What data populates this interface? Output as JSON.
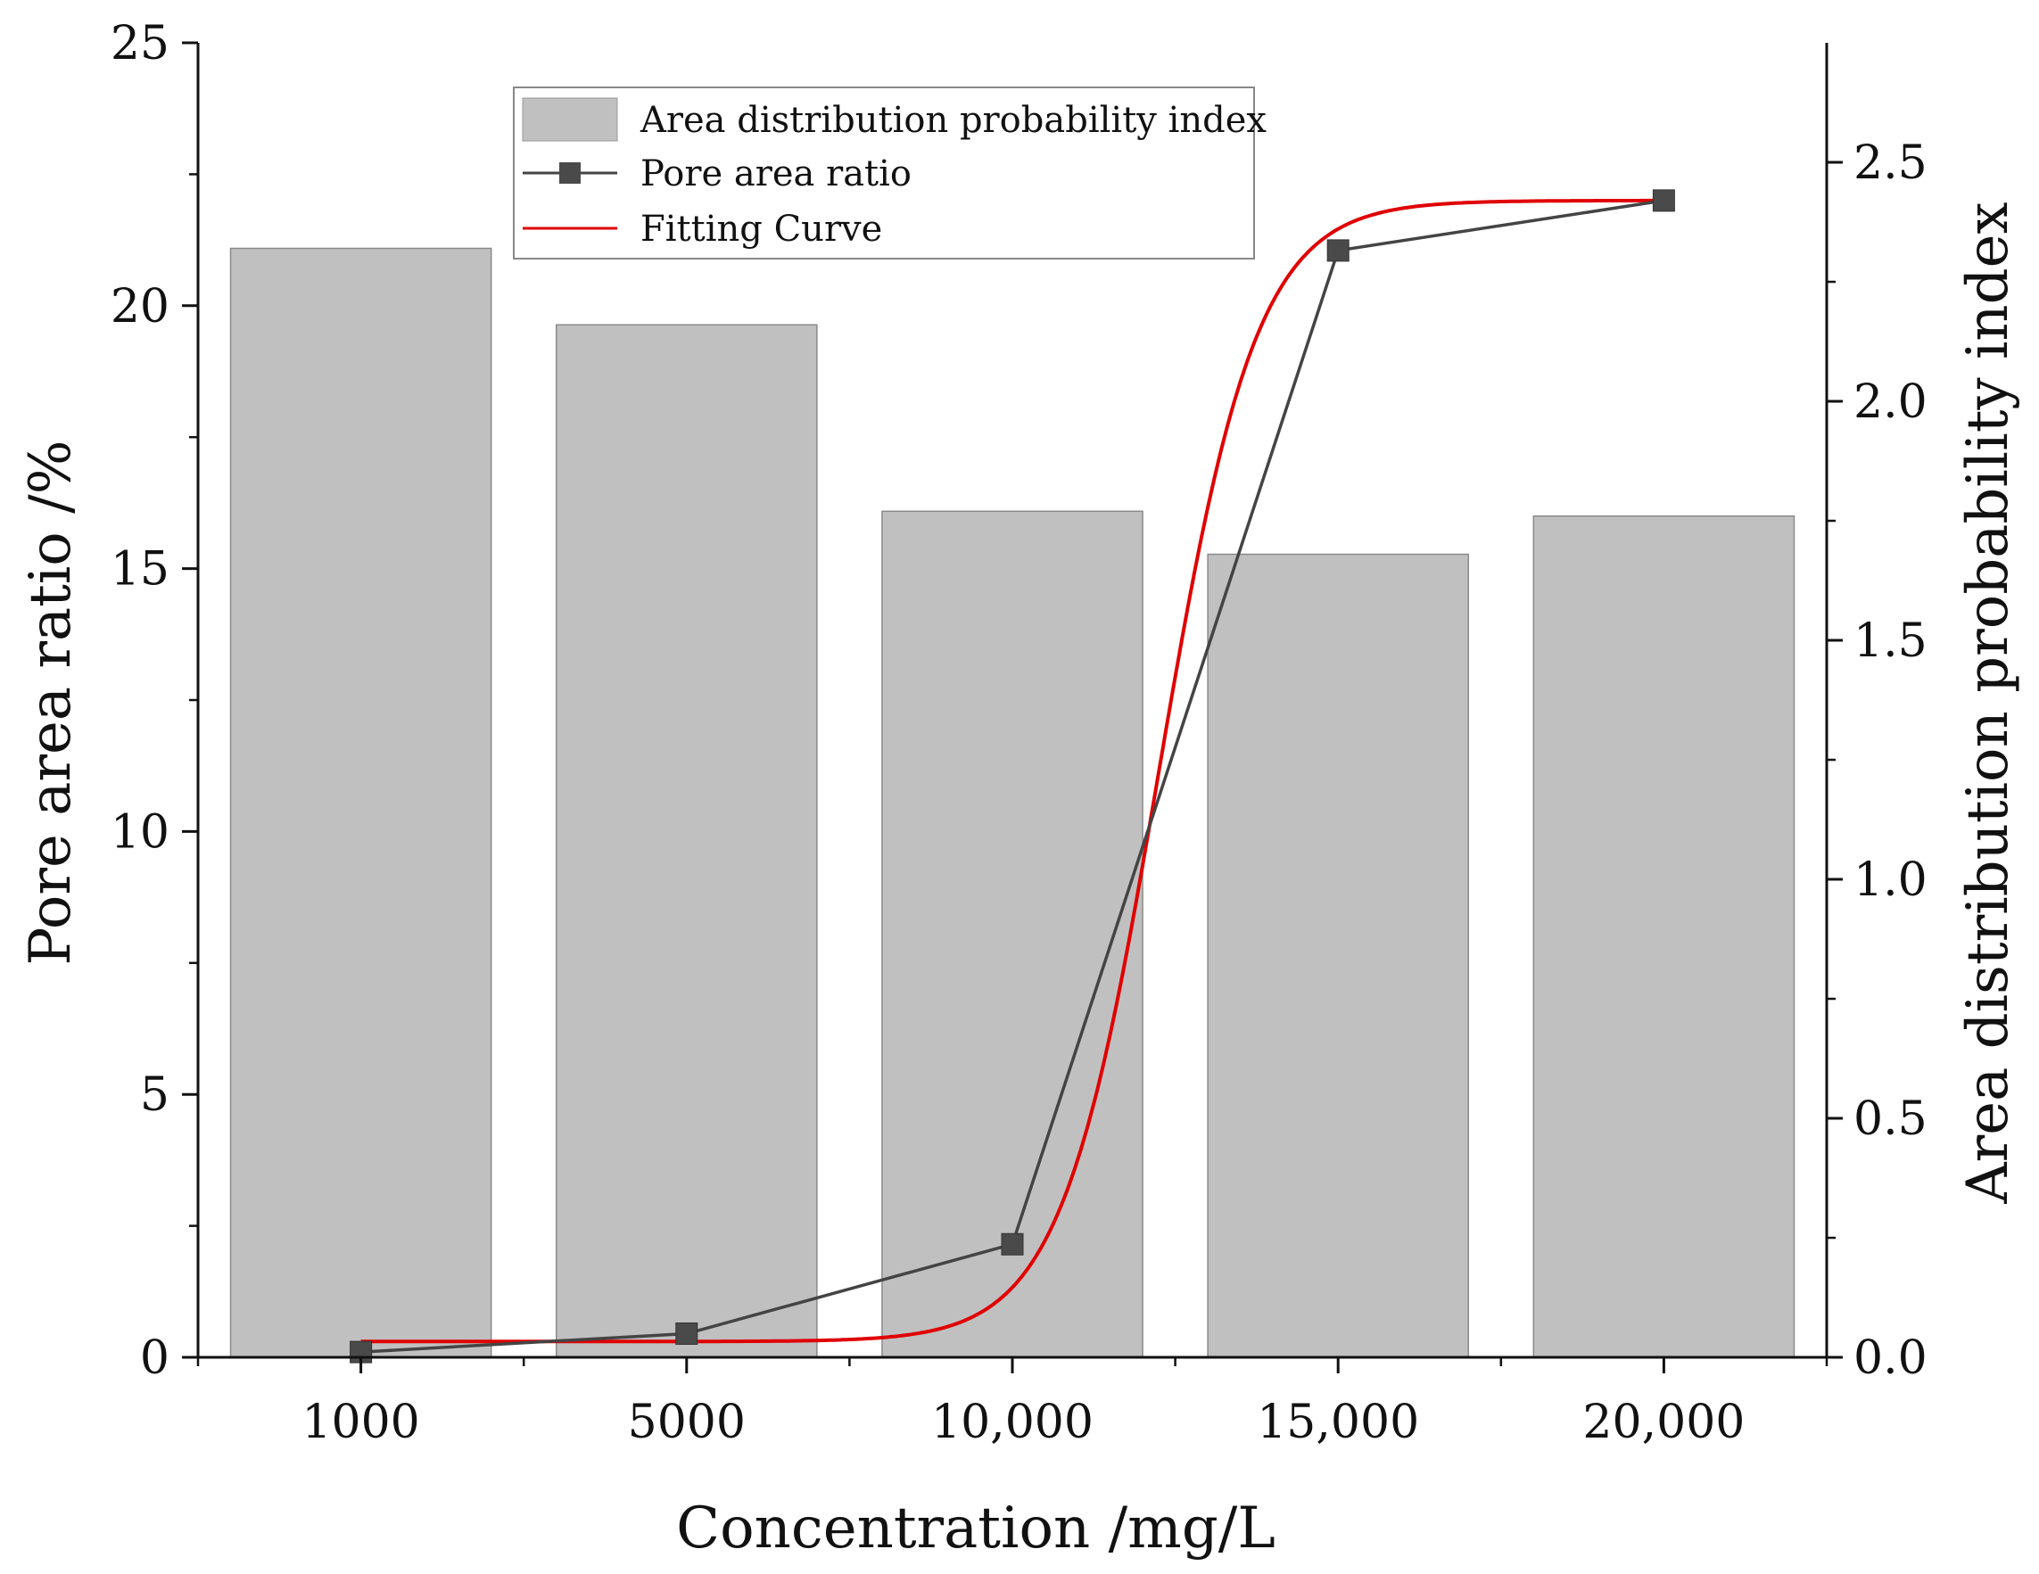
{
  "chart_data": {
    "type": "bar",
    "title": "",
    "categories": [
      "1000",
      "5000",
      "10,000",
      "15,000",
      "20,000"
    ],
    "xlabel": "Concentration /mg/L",
    "ylabel": "Pore area ratio /%",
    "y2label": "Area distribution probability index",
    "ylim": [
      0,
      25
    ],
    "y2lim": [
      0,
      2.75
    ],
    "yticks": [
      "0",
      "5",
      "10",
      "15",
      "20",
      "25"
    ],
    "y2ticks": [
      "0.0",
      "0.5",
      "1.0",
      "1.5",
      "2.0",
      "2.5"
    ],
    "series": [
      {
        "name": "Area distribution probability index",
        "type": "bar",
        "axis": "right",
        "values": [
          2.32,
          2.16,
          1.77,
          1.68,
          1.76
        ],
        "color": "#c0c0c0"
      },
      {
        "name": "Pore area ratio",
        "type": "line",
        "marker": "square",
        "axis": "left",
        "values": [
          0.1,
          0.45,
          2.15,
          21.05,
          22.0
        ],
        "color": "#444444"
      },
      {
        "name": "Fitting Curve",
        "type": "line",
        "axis": "left",
        "model": "sigmoid",
        "params": {
          "bottom": 0.3,
          "top": 22.0,
          "center_index": 2.45,
          "slope": 0.15
        },
        "color": "#e00000"
      }
    ],
    "legend": {
      "position": "top-center",
      "entries": [
        "Area distribution probability index",
        "Pore area ratio",
        "Fitting Curve"
      ]
    }
  }
}
